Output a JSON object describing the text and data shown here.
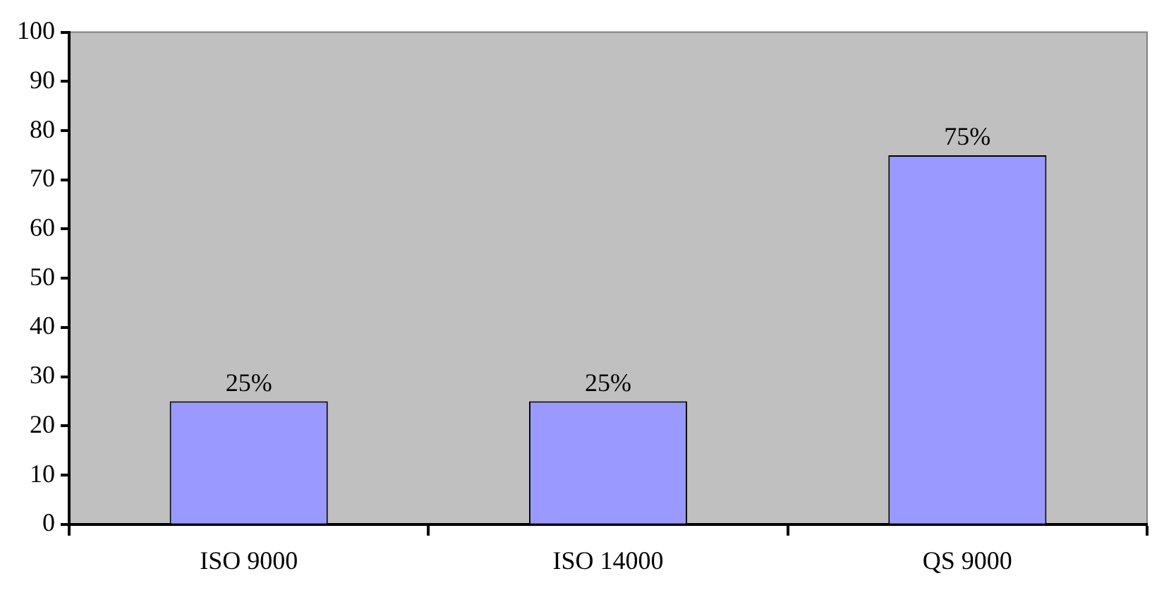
{
  "chart_data": {
    "type": "bar",
    "categories": [
      "ISO 9000",
      "ISO 14000",
      "QS 9000"
    ],
    "values": [
      25,
      25,
      75
    ],
    "color": "#9999ff",
    "value_labels": [
      "25%",
      "25%",
      "75%"
    ],
    "ylim": [
      0,
      100
    ],
    "yticks": [
      0,
      10,
      20,
      30,
      40,
      50,
      60,
      70,
      80,
      90,
      100
    ]
  }
}
